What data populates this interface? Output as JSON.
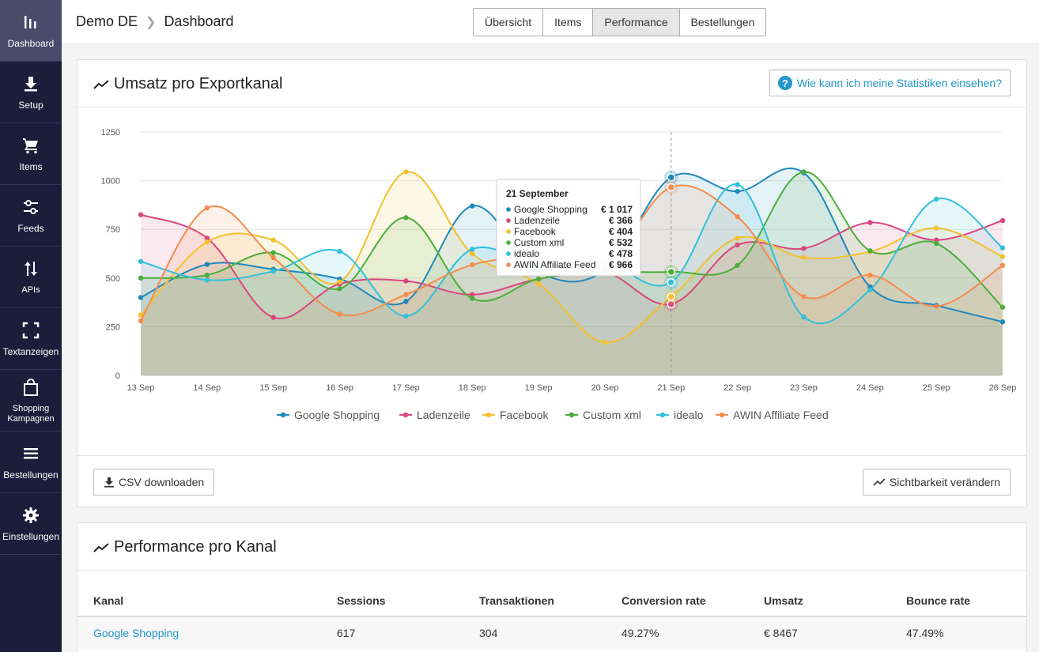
{
  "sidebar": {
    "items": [
      {
        "label": "Dashboard",
        "icon": "bar-chart-icon"
      },
      {
        "label": "Setup",
        "icon": "download-icon"
      },
      {
        "label": "Items",
        "icon": "cart-icon"
      },
      {
        "label": "Feeds",
        "icon": "sliders-icon"
      },
      {
        "label": "APIs",
        "icon": "arrows-updown-icon"
      },
      {
        "label": "Textanzeigen",
        "icon": "frame-corners-icon"
      },
      {
        "label": "Shopping Kampagnen",
        "icon": "shopping-bag-icon"
      },
      {
        "label": "Bestellungen",
        "icon": "list-icon"
      },
      {
        "label": "Einstellungen",
        "icon": "gear-icon"
      }
    ],
    "active": "Dashboard"
  },
  "header": {
    "breadcrumb": [
      "Demo DE",
      "Dashboard"
    ],
    "tabs": [
      "Übersicht",
      "Items",
      "Performance",
      "Bestellungen"
    ],
    "active_tab": "Performance"
  },
  "revenue_card": {
    "title": "Umsatz pro Exportkanal",
    "help_label": "Wie kann ich meine Statistiken einsehen?",
    "csv_label": "CSV downloaden",
    "visibility_label": "Sichtbarkeit verändern",
    "tooltip": {
      "title": "21 September",
      "rows": [
        {
          "name": "Google Shopping",
          "value": "€ 1 017"
        },
        {
          "name": "Ladenzeile",
          "value": "€ 366"
        },
        {
          "name": "Facebook",
          "value": "€ 404"
        },
        {
          "name": "Custom xml",
          "value": "€ 532"
        },
        {
          "name": "idealo",
          "value": "€ 478"
        },
        {
          "name": "AWIN Affiliate Feed",
          "value": "€ 966"
        }
      ]
    }
  },
  "chart_data": {
    "type": "area",
    "categories": [
      "13 Sep",
      "14 Sep",
      "15 Sep",
      "16 Sep",
      "17 Sep",
      "18 Sep",
      "19 Sep",
      "20 Sep",
      "21 Sep",
      "22 Sep",
      "23 Sep",
      "24 Sep",
      "25 Sep",
      "26 Sep"
    ],
    "ylim": [
      0,
      1250
    ],
    "yticks": [
      "0",
      "250",
      "500",
      "750",
      "1000",
      "1250"
    ],
    "hover_index": 8,
    "legend_position": "bottom",
    "series": [
      {
        "name": "Google Shopping",
        "color": "#1f88bd",
        "values": [
          400,
          570,
          545,
          495,
          380,
          870,
          530,
          540,
          1017,
          945,
          1040,
          455,
          360,
          275
        ]
      },
      {
        "name": "Ladenzeile",
        "color": "#d9467f",
        "values": [
          825,
          705,
          298,
          470,
          485,
          415,
          495,
          530,
          366,
          670,
          652,
          785,
          695,
          795
        ]
      },
      {
        "name": "Facebook",
        "color": "#f2c12e",
        "values": [
          310,
          685,
          695,
          480,
          1045,
          625,
          470,
          170,
          404,
          705,
          605,
          635,
          757,
          610
        ]
      },
      {
        "name": "Custom xml",
        "color": "#4cae3a",
        "values": [
          500,
          515,
          630,
          445,
          810,
          395,
          495,
          530,
          532,
          565,
          1045,
          640,
          678,
          350
        ]
      },
      {
        "name": "idealo",
        "color": "#33c0d9",
        "values": [
          585,
          490,
          535,
          637,
          305,
          648,
          560,
          580,
          478,
          980,
          300,
          440,
          905,
          655
        ]
      },
      {
        "name": "AWIN Affiliate Feed",
        "color": "#f58b4c",
        "values": [
          280,
          860,
          605,
          315,
          415,
          568,
          605,
          570,
          966,
          815,
          405,
          515,
          355,
          565
        ]
      }
    ]
  },
  "performance_card": {
    "title": "Performance pro Kanal",
    "columns": [
      "Kanal",
      "Sessions",
      "Transaktionen",
      "Conversion rate",
      "Umsatz",
      "Bounce rate"
    ],
    "rows": [
      {
        "kanal": "Google Shopping",
        "sessions": "617",
        "transaktionen": "304",
        "conversion": "49.27%",
        "umsatz": "€ 8467",
        "bounce": "47.49%"
      }
    ]
  }
}
